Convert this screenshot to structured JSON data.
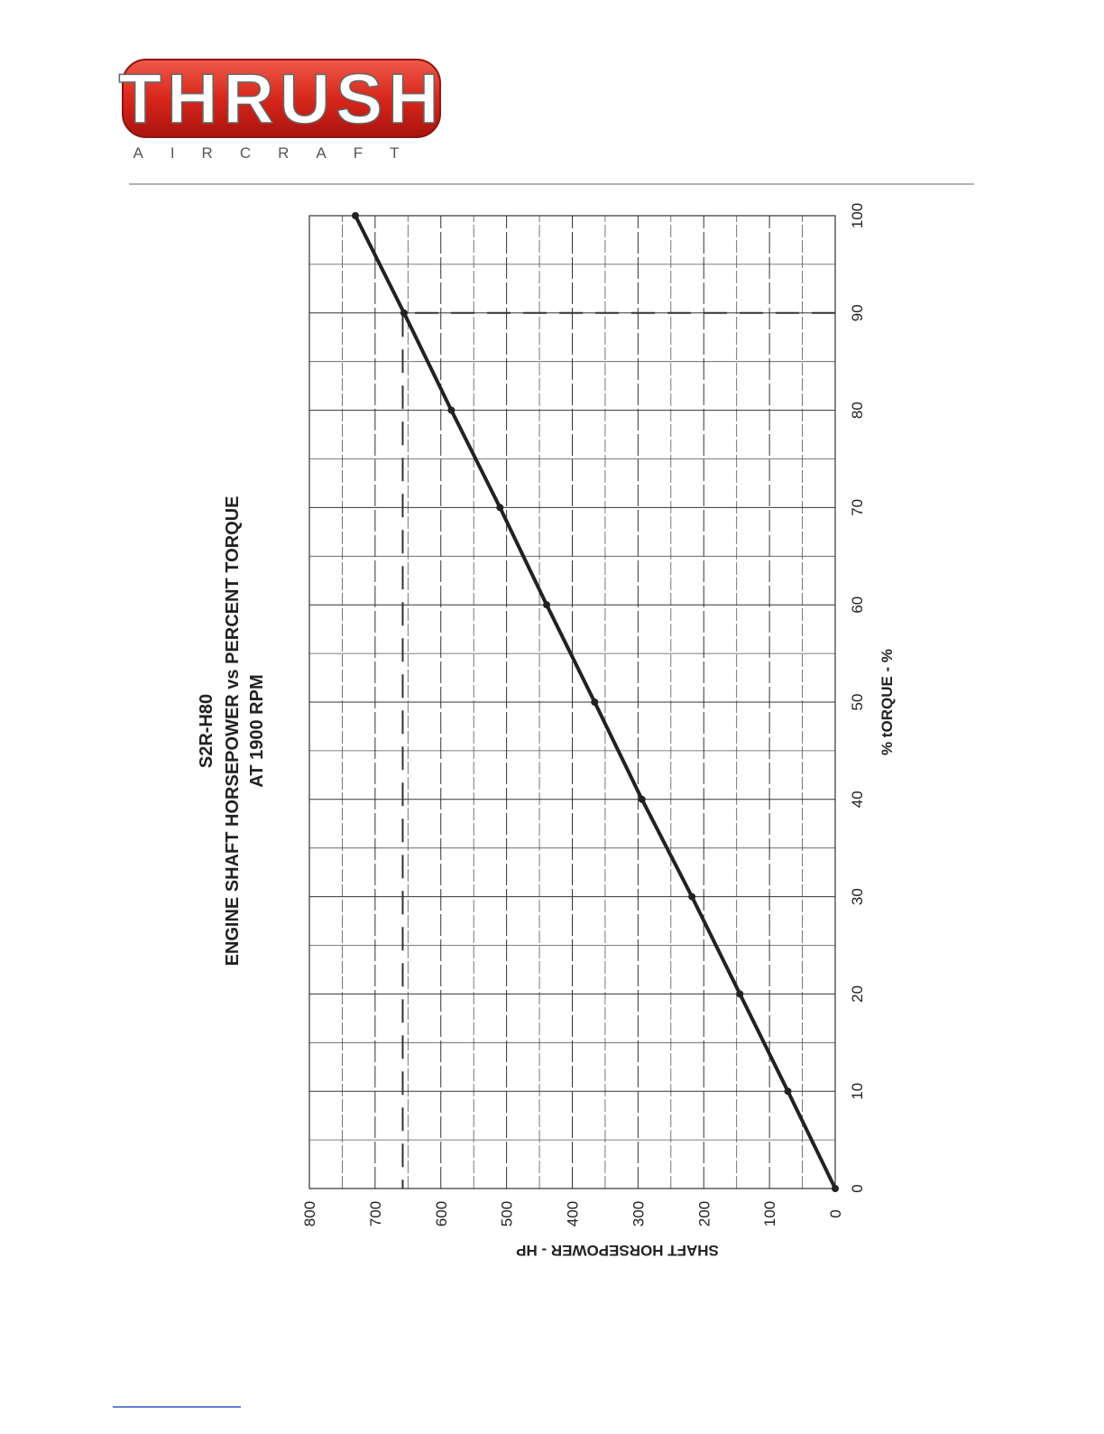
{
  "header": {
    "logo_title": "THRUSH",
    "logo_subtitle": "AIRCRAFT"
  },
  "chart_data": {
    "type": "line",
    "title": "S2R-H80",
    "subtitle": [
      "ENGINE SHAFT HORSEPOWER vs PERCENT TORQUE",
      "AT 1900 RPM"
    ],
    "xlabel": "% tORQUE - %",
    "ylabel": "SHAFT HORSEPOWER - HP",
    "x": [
      0,
      10,
      20,
      30,
      40,
      50,
      60,
      70,
      80,
      90,
      100
    ],
    "series": [
      {
        "color": "#222222",
        "values": [
          0,
          72,
          145,
          218,
          294,
          366,
          439,
          510,
          584,
          656,
          730
        ]
      }
    ],
    "xlim": [
      0,
      100
    ],
    "ylim": [
      0,
      800
    ],
    "xticks": [
      0,
      10,
      20,
      30,
      40,
      50,
      60,
      70,
      80,
      90,
      100
    ],
    "yticks": [
      0,
      100,
      200,
      300,
      400,
      500,
      600,
      700,
      800
    ],
    "grid": true,
    "reference": {
      "x": 90,
      "y": 658
    }
  }
}
